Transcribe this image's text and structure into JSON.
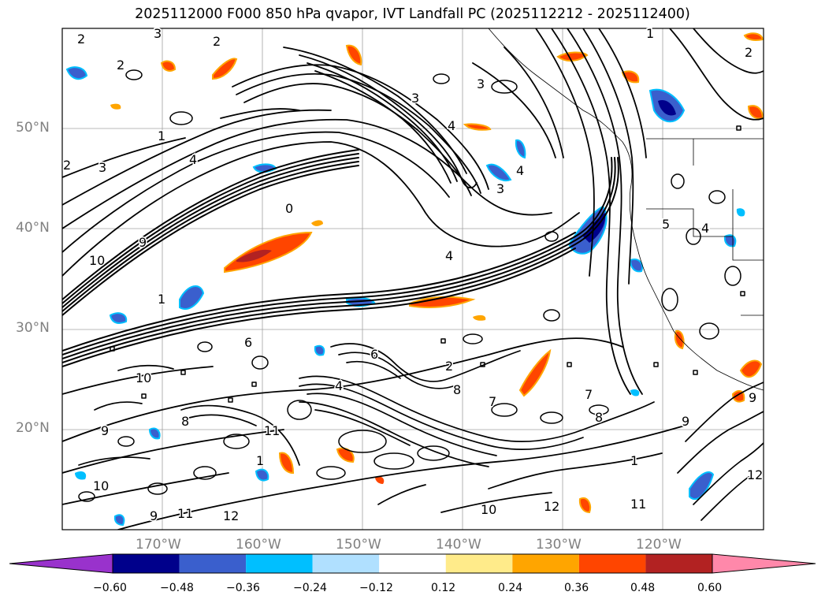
{
  "title": "2025112000 F000 850 hPa qvapor, IVT Landfall PC (2025112212 - 2025112400)",
  "lat_labels": [
    "50°N",
    "40°N",
    "30°N",
    "20°N"
  ],
  "lon_labels": [
    "170°W",
    "160°W",
    "150°W",
    "140°W",
    "130°W",
    "120°W"
  ],
  "colorbar": {
    "colors": [
      "#9932cc",
      "#00008b",
      "#3a5fcd",
      "#00bfff",
      "#b0e0ff",
      "#ffffff",
      "#ffeb8a",
      "#ffa500",
      "#ff4500",
      "#b22222",
      "#ff88aa"
    ],
    "tick_labels": [
      "−0.60",
      "−0.48",
      "−0.36",
      "−0.24",
      "−0.12",
      "0.12",
      "0.24",
      "0.36",
      "0.48",
      "0.60"
    ]
  },
  "contour_labels": [
    "2",
    "3",
    "2",
    "2",
    "1",
    "2",
    "3",
    "3",
    "4",
    "4",
    "3",
    "1",
    "2",
    "3",
    "4",
    "4",
    "10",
    "9",
    "0",
    "1",
    "4",
    "8",
    "10",
    "9",
    "8",
    "11",
    "9",
    "10",
    "11",
    "12",
    "12",
    "10",
    "11",
    "1",
    "2",
    "6",
    "7",
    "9",
    "5",
    "4",
    "6",
    "7",
    "8",
    "9",
    "1",
    "12"
  ]
}
